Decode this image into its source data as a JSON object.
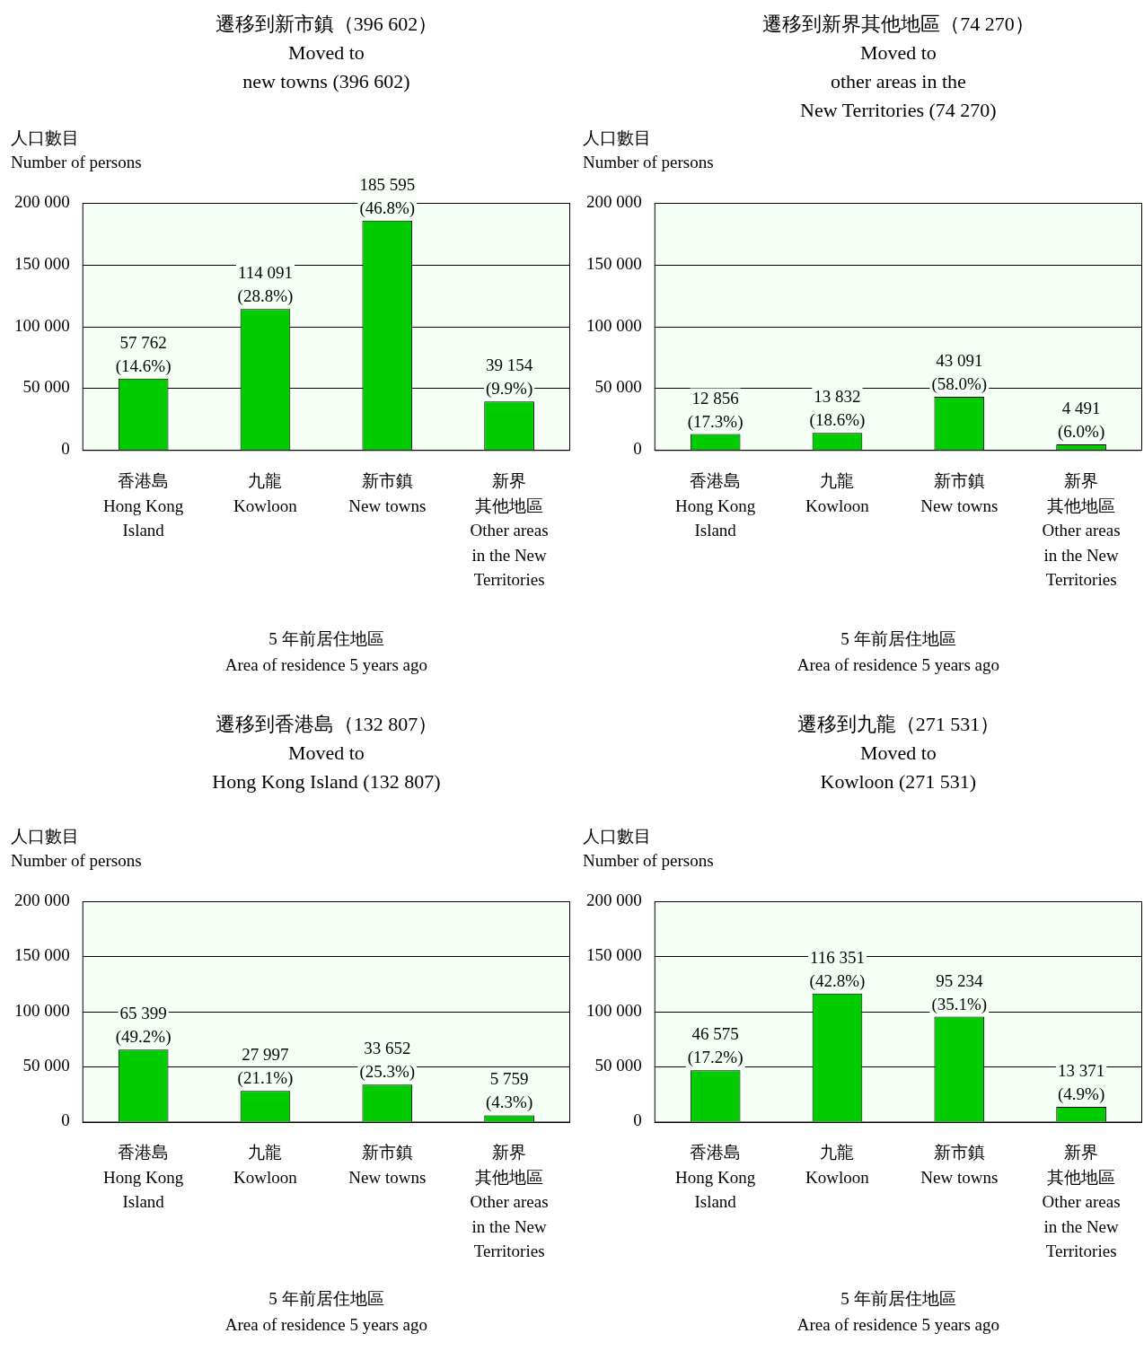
{
  "chart_data": [
    {
      "type": "bar",
      "title": "遷移到新市鎮（396 602）\nMoved to\nnew towns (396 602)",
      "ylabel": "人口數目\nNumber of persons",
      "xlabel": "5 年前居住地區\nArea of residence 5 years ago",
      "categories": [
        "香港島\nHong Kong\nIsland",
        "九龍\nKowloon",
        "新市鎮\nNew towns",
        "新界其他地區\nOther areas\nin the New\nTerritories"
      ],
      "values": [
        57762,
        114091,
        185595,
        39154
      ],
      "value_labels": [
        "57 762\n(14.6%)",
        "114 091\n(28.8%)",
        "185 595\n(46.8%)",
        "39 154\n(9.9%)"
      ],
      "color": "#00cc00",
      "ylim": [
        0,
        200000
      ],
      "yticks": [
        {
          "value": 0,
          "label": "0"
        },
        {
          "value": 50000,
          "label": "50 000"
        },
        {
          "value": 100000,
          "label": "100 000"
        },
        {
          "value": 150000,
          "label": "150 000"
        },
        {
          "value": 200000,
          "label": "200 000"
        }
      ],
      "grid": "y"
    },
    {
      "type": "bar",
      "title": "遷移到新界其他地區（74 270）\nMoved to\nother areas in the\nNew Territories (74 270)",
      "ylabel": "人口數目\nNumber of persons",
      "xlabel": "5 年前居住地區\nArea of residence 5 years ago",
      "categories": [
        "香港島\nHong Kong\nIsland",
        "九龍\nKowloon",
        "新市鎮\nNew towns",
        "新界其他地區\nOther areas\nin the New\nTerritories"
      ],
      "values": [
        12856,
        13832,
        43091,
        4491
      ],
      "value_labels": [
        "12 856\n(17.3%)",
        "13 832\n(18.6%)",
        "43 091\n(58.0%)",
        "4 491\n(6.0%)"
      ],
      "color": "#00cc00",
      "ylim": [
        0,
        200000
      ],
      "yticks": [
        {
          "value": 0,
          "label": "0"
        },
        {
          "value": 50000,
          "label": "50 000"
        },
        {
          "value": 100000,
          "label": "100 000"
        },
        {
          "value": 150000,
          "label": "150 000"
        },
        {
          "value": 200000,
          "label": "200 000"
        }
      ],
      "grid": "y"
    },
    {
      "type": "bar",
      "title": "遷移到香港島（132 807）\nMoved to\nHong Kong Island (132 807)",
      "ylabel": "人口數目\nNumber of persons",
      "xlabel": "5 年前居住地區\nArea of residence 5 years ago",
      "categories": [
        "香港島\nHong Kong\nIsland",
        "九龍\nKowloon",
        "新市鎮\nNew towns",
        "新界其他地區\nOther areas\nin the New\nTerritories"
      ],
      "values": [
        65399,
        27997,
        33652,
        5759
      ],
      "value_labels": [
        "65 399\n(49.2%)",
        "27 997\n(21.1%)",
        "33 652\n(25.3%)",
        "5 759\n(4.3%)"
      ],
      "color": "#00cc00",
      "ylim": [
        0,
        200000
      ],
      "yticks": [
        {
          "value": 0,
          "label": "0"
        },
        {
          "value": 50000,
          "label": "50 000"
        },
        {
          "value": 100000,
          "label": "100 000"
        },
        {
          "value": 150000,
          "label": "150 000"
        },
        {
          "value": 200000,
          "label": "200 000"
        }
      ],
      "grid": "y"
    },
    {
      "type": "bar",
      "title": "遷移到九龍（271 531）\nMoved to\nKowloon (271 531)",
      "ylabel": "人口數目\nNumber of persons",
      "xlabel": "5 年前居住地區\nArea of residence 5 years ago",
      "categories": [
        "香港島\nHong Kong\nIsland",
        "九龍\nKowloon",
        "新市鎮\nNew towns",
        "新界其他地區\nOther areas\nin the New\nTerritories"
      ],
      "values": [
        46575,
        116351,
        95234,
        13371
      ],
      "value_labels": [
        "46 575\n(17.2%)",
        "116 351\n(42.8%)",
        "95 234\n(35.1%)",
        "13 371\n(4.9%)"
      ],
      "color": "#00cc00",
      "ylim": [
        0,
        200000
      ],
      "yticks": [
        {
          "value": 0,
          "label": "0"
        },
        {
          "value": 50000,
          "label": "50 000"
        },
        {
          "value": 100000,
          "label": "100 000"
        },
        {
          "value": 150000,
          "label": "150 000"
        },
        {
          "value": 200000,
          "label": "200 000"
        }
      ],
      "grid": "y"
    }
  ]
}
